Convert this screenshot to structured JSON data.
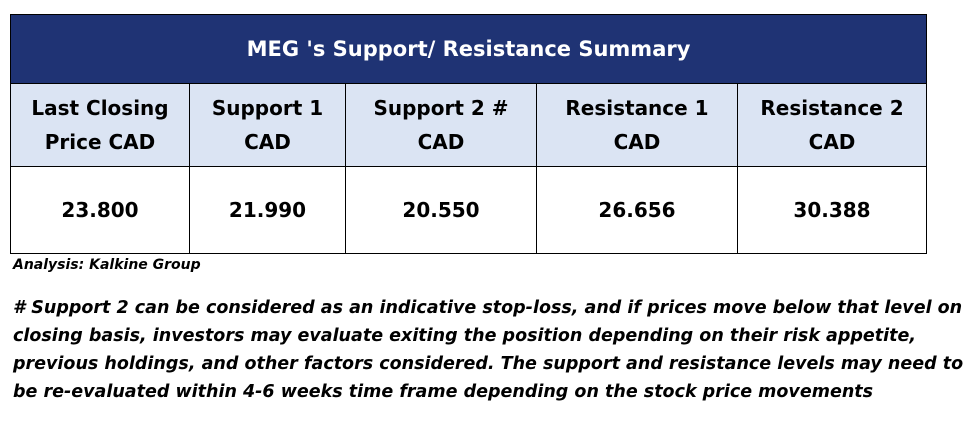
{
  "table": {
    "title": "MEG 's Support/  Resistance Summary",
    "columns": [
      {
        "line1": "Last Closing",
        "line2": "Price CAD",
        "value": "23.800"
      },
      {
        "line1": "Support 1",
        "line2": "CAD",
        "value": "21.990"
      },
      {
        "line1": "Support 2 #",
        "line2": "CAD",
        "value": "20.550"
      },
      {
        "line1": "Resistance 1",
        "line2": "CAD",
        "value": "26.656"
      },
      {
        "line1": "Resistance 2",
        "line2": "CAD",
        "value": "30.388"
      }
    ]
  },
  "analysis": "Analysis: Kalkine Group",
  "note_lines": [
    "# Support 2 can be considered as an indicative stop-loss, and if prices move below that level on",
    "closing basis, investors may evaluate exiting the position depending on their risk appetite,",
    "previous holdings, and other factors considered. The support and resistance levels may need to",
    "be re-evaluated within 4-6 weeks time frame depending on the stock price movements"
  ],
  "colors": {
    "title_bg": "#1f3374",
    "header_bg": "#dbe4f3",
    "title_text": "#ffffff"
  }
}
